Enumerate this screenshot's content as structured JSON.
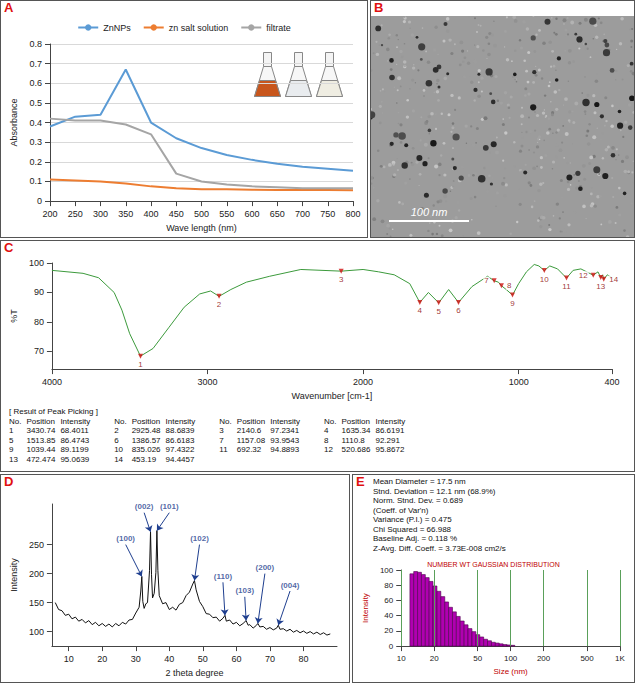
{
  "chart_data": [
    {
      "panel": "A",
      "type": "line",
      "x": [
        200,
        250,
        300,
        350,
        400,
        450,
        500,
        550,
        600,
        650,
        700,
        750,
        800
      ],
      "series": [
        {
          "name": "ZnNPs",
          "color": "#5b9bd5",
          "values": [
            0.38,
            0.43,
            0.44,
            0.67,
            0.4,
            0.32,
            0.27,
            0.235,
            0.21,
            0.19,
            0.175,
            0.165,
            0.155
          ]
        },
        {
          "name": "zn salt solution",
          "color": "#ed7d31",
          "values": [
            0.11,
            0.105,
            0.1,
            0.09,
            0.075,
            0.065,
            0.06,
            0.06,
            0.058,
            0.057,
            0.056,
            0.056,
            0.055
          ]
        },
        {
          "name": "filtrate",
          "color": "#a5a5a5",
          "values": [
            0.42,
            0.41,
            0.41,
            0.39,
            0.34,
            0.14,
            0.1,
            0.085,
            0.075,
            0.07,
            0.065,
            0.065,
            0.065
          ]
        }
      ],
      "x_label": "Wave length (nm)",
      "y_label": "Absorbance",
      "xlim": [
        200,
        800
      ],
      "xticks": [
        200,
        250,
        300,
        350,
        400,
        450,
        500,
        550,
        600,
        650,
        700,
        750,
        800
      ],
      "ylim": [
        0,
        0.8
      ],
      "yticks": [
        0,
        0.1,
        0.2,
        0.3,
        0.4,
        0.5,
        0.6,
        0.7,
        0.8
      ],
      "grid": "y",
      "legend": "top",
      "marker": "none"
    },
    {
      "panel": "B",
      "type": "image",
      "scale_bar": "100 nm"
    },
    {
      "panel": "C",
      "type": "line",
      "x": [
        4000,
        3800,
        3700,
        3600,
        3550,
        3500,
        3430.74,
        3350,
        3250,
        3150,
        3050,
        2980,
        2925.48,
        2850,
        2750,
        2600,
        2400,
        2140.6,
        2000,
        1900,
        1800,
        1700,
        1635.34,
        1580,
        1513.85,
        1450,
        1386.57,
        1300,
        1200,
        1157.08,
        1130,
        1110.8,
        1080,
        1039.44,
        1000,
        950,
        900,
        870,
        835.026,
        800,
        750,
        692.32,
        650,
        600,
        520.686,
        490,
        472.474,
        460,
        453.19,
        430,
        400
      ],
      "values": [
        97.5,
        96.5,
        95,
        90,
        84,
        76,
        68.4011,
        71,
        78,
        85,
        89.5,
        90.5,
        88.6839,
        91,
        93.5,
        95.5,
        97.8,
        97.2341,
        97.8,
        97,
        96,
        93,
        86.6191,
        90,
        86.4743,
        91,
        86.6183,
        92,
        95.5,
        93.9543,
        93.5,
        92.291,
        91,
        89.1199,
        93,
        97,
        99.5,
        99,
        97.4322,
        99,
        98,
        94.8893,
        97.5,
        98,
        95.8672,
        97,
        95.0639,
        96,
        94.4457,
        96,
        95
      ],
      "color": "#3c9a3c",
      "x_label": "Wavenumber [cm-1]",
      "y_label": "%T",
      "xlim": [
        4000,
        400
      ],
      "xticks": [
        400,
        1000,
        2000,
        3000,
        4000
      ],
      "ylim": [
        64,
        100
      ],
      "yticks": [
        70,
        80,
        90,
        100
      ],
      "marker": "none",
      "peaks": [
        {
          "no": 1,
          "position": 3430.74,
          "intensity": 68.4011
        },
        {
          "no": 2,
          "position": 2925.48,
          "intensity": 88.6839
        },
        {
          "no": 3,
          "position": 2140.6,
          "intensity": 97.2341
        },
        {
          "no": 4,
          "position": 1635.34,
          "intensity": 86.6191
        },
        {
          "no": 5,
          "position": 1513.85,
          "intensity": 86.4743
        },
        {
          "no": 6,
          "position": 1386.57,
          "intensity": 86.6183
        },
        {
          "no": 7,
          "position": 1157.08,
          "intensity": 93.9543
        },
        {
          "no": 8,
          "position": 1110.8,
          "intensity": 92.291
        },
        {
          "no": 9,
          "position": 1039.44,
          "intensity": 89.1199
        },
        {
          "no": 10,
          "position": 835.026,
          "intensity": 97.4322
        },
        {
          "no": 11,
          "position": 692.32,
          "intensity": 94.8893
        },
        {
          "no": 12,
          "position": 520.686,
          "intensity": 95.8672
        },
        {
          "no": 13,
          "position": 472.474,
          "intensity": 95.0639
        },
        {
          "no": 14,
          "position": 453.19,
          "intensity": 94.4457
        }
      ],
      "peak_table": {
        "title": "[ Result of Peak Picking ]",
        "columns": [
          "No.",
          "Position",
          "Intensity"
        ]
      }
    },
    {
      "panel": "D",
      "type": "line",
      "x": [
        6,
        7,
        8,
        9,
        10,
        11,
        12,
        13,
        14,
        15,
        16,
        17,
        18,
        19,
        20,
        21,
        22,
        23,
        24,
        25,
        26,
        27,
        28,
        29,
        30,
        31,
        31.5,
        31.8,
        32.1,
        32.5,
        33,
        33.5,
        34.1,
        34.4,
        34.7,
        35,
        35.5,
        36,
        36.3,
        36.6,
        37,
        38,
        39,
        40,
        41,
        42,
        43,
        44,
        45,
        46,
        47,
        47.5,
        48,
        49,
        50,
        51,
        52,
        53,
        54,
        55,
        56,
        56.6,
        57,
        58,
        59,
        60,
        61,
        62,
        62.9,
        63.5,
        64,
        65,
        66,
        66.4,
        67,
        68,
        69,
        70,
        71,
        72,
        72.5,
        73,
        74,
        75,
        76,
        77,
        78,
        79,
        80,
        81,
        82,
        83,
        84,
        85,
        86,
        87,
        88
      ],
      "values": [
        150,
        138,
        136,
        128,
        130,
        122,
        125,
        118,
        121,
        115,
        119,
        112,
        116,
        110,
        114,
        109,
        113,
        108,
        114,
        110,
        116,
        113,
        120,
        121,
        132,
        142,
        170,
        195,
        152,
        140,
        148,
        150,
        205,
        272,
        198,
        158,
        166,
        202,
        274,
        205,
        162,
        148,
        150,
        138,
        142,
        137,
        147,
        150,
        162,
        168,
        182,
        188,
        172,
        152,
        143,
        131,
        130,
        124,
        125,
        118,
        123,
        128,
        118,
        120,
        113,
        116,
        110,
        114,
        119,
        111,
        112,
        106,
        111,
        114,
        108,
        109,
        104,
        107,
        103,
        106,
        111,
        104,
        105,
        101,
        104,
        99,
        102,
        98,
        101,
        97,
        100,
        96,
        99,
        95,
        98,
        94,
        96
      ],
      "color": "#111111",
      "x_label": "2 theta degree",
      "y_label": "Intensity",
      "xlim": [
        5,
        90
      ],
      "xticks": [
        10,
        20,
        30,
        40,
        50,
        60,
        70,
        80
      ],
      "ylim": [
        75,
        320
      ],
      "yticks": [
        100,
        150,
        200,
        250
      ],
      "marker": "none",
      "annotations": [
        {
          "text": "(100)",
          "x": 31.8,
          "y": 195,
          "text_x": 27,
          "text_y": 250
        },
        {
          "text": "(002)",
          "x": 34.4,
          "y": 272,
          "text_x": 32.5,
          "text_y": 305
        },
        {
          "text": "(101)",
          "x": 36.3,
          "y": 274,
          "text_x": 40,
          "text_y": 305
        },
        {
          "text": "(102)",
          "x": 47.5,
          "y": 188,
          "text_x": 49,
          "text_y": 250
        },
        {
          "text": "(110)",
          "x": 56.6,
          "y": 128,
          "text_x": 56,
          "text_y": 185
        },
        {
          "text": "(103)",
          "x": 62.9,
          "y": 119,
          "text_x": 62.5,
          "text_y": 160
        },
        {
          "text": "(200)",
          "x": 66.4,
          "y": 114,
          "text_x": 68.5,
          "text_y": 200
        },
        {
          "text": "(004)",
          "x": 72.5,
          "y": 111,
          "text_x": 76,
          "text_y": 170
        }
      ]
    },
    {
      "panel": "E",
      "type": "histogram",
      "title": "NUMBER WT GAUSSIAN DISTRIBUTION",
      "bins": [
        12,
        13,
        14.1,
        15.3,
        16.6,
        18,
        19.5,
        21.2,
        23,
        25,
        27.1,
        29.4,
        31.9,
        34.6,
        37.6,
        40.8,
        44.3,
        48.1,
        52.2,
        56.7,
        61.5,
        66.8,
        72.5,
        78.7,
        85.4,
        92.7,
        100.6,
        109.2
      ],
      "counts": [
        95,
        98,
        97,
        94,
        90,
        85,
        79,
        72,
        65,
        58,
        51,
        45,
        39,
        33,
        28,
        23,
        19,
        15,
        12,
        9,
        7,
        5,
        4,
        3,
        2,
        1.5,
        1
      ],
      "color": "#b000b0",
      "x_label": "Size (nm)",
      "y_label": "Intensity",
      "xlim": [
        10,
        1000
      ],
      "xticks": [
        10,
        20,
        50,
        100,
        200,
        500,
        {
          "value": 1000,
          "label": "1K"
        }
      ],
      "ylim": [
        0,
        100
      ],
      "yticks": [
        0,
        20,
        40,
        60,
        80,
        100
      ],
      "log": "x",
      "grid": "x",
      "stats": [
        [
          "Mean Diameter = 17.5 nm",
          "Stnd. Deviation = 12.1 nm (68.9%)",
          "Norm. Stnd. Dev. = 0.689",
          "(Coeff. of Var'n)"
        ],
        [
          "Variance (P.I.) = 0.475",
          "Chi Squared = 66.988",
          "Baseline Adj. = 0.118 %",
          "Z-Avg. Diff. Coeff. = 3.73E-008 cm2/s"
        ]
      ]
    }
  ]
}
